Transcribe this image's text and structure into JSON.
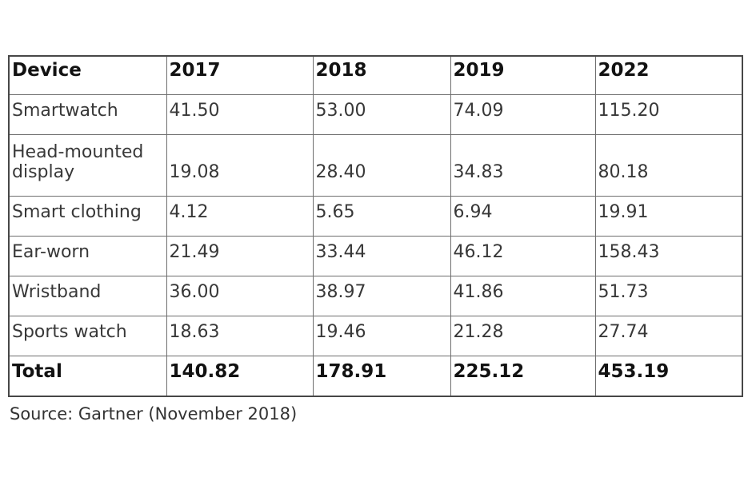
{
  "chart_data": {
    "type": "table",
    "columns": [
      "Device",
      "2017",
      "2018",
      "2019",
      "2022"
    ],
    "rows": [
      {
        "device": "Smartwatch",
        "values": [
          "41.50",
          "53.00",
          "74.09",
          "115.20"
        ]
      },
      {
        "device": "Head-mounted display",
        "values": [
          "19.08",
          "28.40",
          "34.83",
          "80.18"
        ]
      },
      {
        "device": "Smart clothing",
        "values": [
          "4.12",
          "5.65",
          "6.94",
          "19.91"
        ]
      },
      {
        "device": "Ear-worn",
        "values": [
          "21.49",
          "33.44",
          "46.12",
          "158.43"
        ]
      },
      {
        "device": "Wristband",
        "values": [
          "36.00",
          "38.97",
          "41.86",
          "51.73"
        ]
      },
      {
        "device": "Sports watch",
        "values": [
          "18.63",
          "19.46",
          "21.28",
          "27.74"
        ]
      }
    ],
    "total": {
      "label": "Total",
      "values": [
        "140.82",
        "178.91",
        "225.12",
        "453.19"
      ]
    }
  },
  "source_note": "Source: Gartner (November 2018)",
  "colors": {
    "background": "#ffffff",
    "text_regular": "#383838",
    "text_bold": "#121212",
    "border_inner": "#6e6e6e",
    "border_outer": "#474747"
  }
}
